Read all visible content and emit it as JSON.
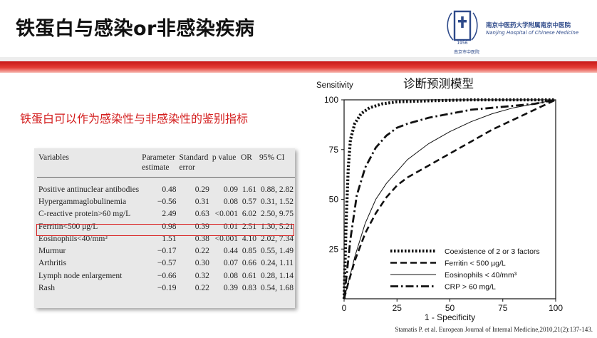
{
  "slide": {
    "title": "铁蛋白与感染or非感染疾病",
    "subtitle": "铁蛋白可以作为感染性与非感染性的鉴别指标",
    "citation": "Stamatis P. et al. European Journal of Internal Medicine,2010,21(2):137-143."
  },
  "logo": {
    "name_cn": "南京中医药大学附属南京中医院",
    "name_en": "Nanjing Hospital of Chinese Medicine",
    "year": "1956",
    "seal_text": "南京市中医院"
  },
  "table": {
    "headers": [
      "Variables",
      "Parameter estimate",
      "Standard error",
      "p value",
      "OR",
      "95% CI"
    ],
    "rows": [
      [
        "Positive antinuclear antibodies",
        "0.48",
        "0.29",
        "0.09",
        "1.61",
        "0.88, 2.82"
      ],
      [
        "Hypergammaglobulinemia",
        "−0.56",
        "0.31",
        "0.08",
        "0.57",
        "0.31, 1.52"
      ],
      [
        "C-reactive protein>60 mg/L",
        "2.49",
        "0.63",
        "<0.001",
        "6.02",
        "2.50, 9.75"
      ],
      [
        "Ferritin<500 μg/L",
        "0.98",
        "0.39",
        "0.01",
        "2.51",
        "1.30, 5.21"
      ],
      [
        "Eosinophils<40/mm³",
        "1.51",
        "0.38",
        "<0.001",
        "4.10",
        "2.02, 7.34"
      ],
      [
        "Murmur",
        "−0.17",
        "0.22",
        "0.44",
        "0.85",
        "0.55, 1.49"
      ],
      [
        "Arthritis",
        "−0.57",
        "0.30",
        "0.07",
        "0.66",
        "0.24, 1.11"
      ],
      [
        "Lymph node enlargement",
        "−0.66",
        "0.32",
        "0.08",
        "0.61",
        "0.28, 1.14"
      ],
      [
        "Rash",
        "−0.19",
        "0.22",
        "0.39",
        "0.83",
        "0.54, 1.68"
      ]
    ],
    "highlight_row": 3,
    "highlight_color": "#d81e1e"
  },
  "chart_data": {
    "type": "line",
    "title": "诊断预测模型",
    "xlabel": "1 - Specificity",
    "ylabel": "Sensitivity",
    "xlim": [
      0,
      100
    ],
    "ylim": [
      0,
      100
    ],
    "xticks": [
      0,
      25,
      50,
      75,
      100
    ],
    "yticks": [
      25,
      50,
      75,
      100
    ],
    "legend_position": "bottom-right",
    "series": [
      {
        "name": "Coexistence of 2 or 3 factors",
        "style": "dotted",
        "x": [
          0,
          1,
          2,
          3,
          5,
          8,
          12,
          18,
          25,
          40,
          60,
          80,
          100
        ],
        "y": [
          0,
          40,
          66,
          80,
          88,
          93,
          96,
          98,
          99,
          99.5,
          100,
          100,
          100
        ]
      },
      {
        "name": "Ferritin < 500 µg/L",
        "style": "dashed",
        "x": [
          0,
          2,
          5,
          10,
          15,
          20,
          25,
          30,
          40,
          50,
          60,
          70,
          80,
          90,
          100
        ],
        "y": [
          0,
          8,
          19,
          33,
          43,
          51,
          57,
          61,
          67,
          73,
          79,
          85,
          90,
          95,
          100
        ]
      },
      {
        "name": "Eosinophils < 40/mm³",
        "style": "solid-thin",
        "x": [
          0,
          2,
          5,
          10,
          15,
          20,
          30,
          40,
          50,
          60,
          70,
          80,
          90,
          100
        ],
        "y": [
          0,
          8,
          21,
          38,
          50,
          58,
          70,
          78,
          84,
          89,
          93,
          96,
          98,
          100
        ]
      },
      {
        "name": "CRP > 60 mg/L",
        "style": "dash-dot",
        "x": [
          0,
          1,
          3,
          6,
          10,
          15,
          20,
          25,
          30,
          40,
          50,
          60,
          70,
          80,
          90,
          100
        ],
        "y": [
          0,
          10,
          30,
          52,
          66,
          76,
          82,
          86,
          88,
          91,
          93,
          95,
          96,
          97,
          98,
          100
        ]
      }
    ]
  }
}
